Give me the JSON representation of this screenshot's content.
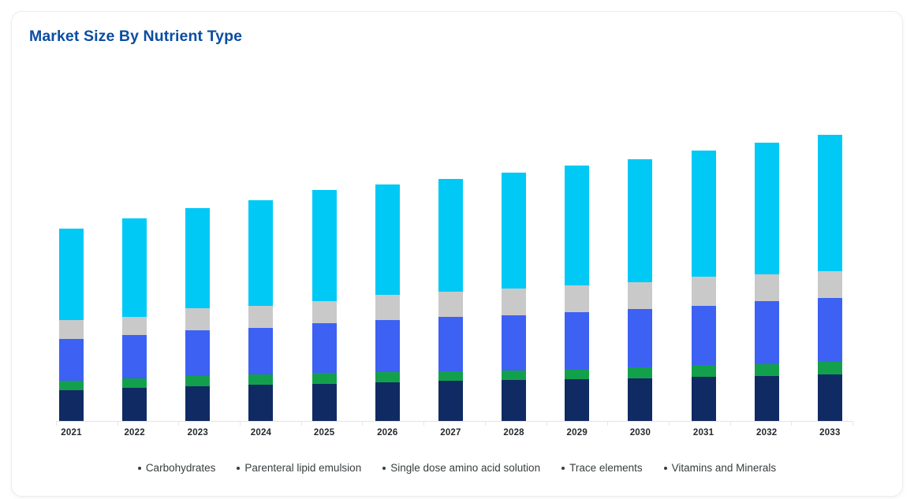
{
  "chart_data": {
    "type": "bar",
    "stacked": true,
    "title": "Market Size By Nutrient Type",
    "xlabel": "",
    "ylabel": "",
    "grid": false,
    "legend_position": "bottom",
    "ylim": [
      0,
      365
    ],
    "categories": [
      "2021",
      "2022",
      "2023",
      "2024",
      "2025",
      "2026",
      "2027",
      "2028",
      "2029",
      "2030",
      "2031",
      "2032",
      "2033"
    ],
    "series": [
      {
        "name": "Carbohydrates",
        "color": "#102a63",
        "values": [
          39,
          42,
          44,
          46,
          47,
          49,
          51,
          52,
          53,
          54,
          56,
          57,
          59
        ]
      },
      {
        "name": "Parenteral lipid emulsion",
        "color": "#13a04c",
        "values": [
          12,
          12,
          13,
          13,
          14,
          13,
          12,
          12,
          12,
          14,
          15,
          15,
          16
        ]
      },
      {
        "name": "Single dose amino acid solution",
        "color": "#3d61f2",
        "values": [
          53,
          55,
          58,
          59,
          63,
          66,
          69,
          70,
          73,
          74,
          75,
          80,
          81
        ]
      },
      {
        "name": "Trace elements",
        "color": "#c9c9c9",
        "values": [
          24,
          23,
          28,
          28,
          28,
          32,
          32,
          34,
          34,
          34,
          37,
          34,
          34
        ]
      },
      {
        "name": "Vitamins and Minerals",
        "color": "#00c9f5",
        "values": [
          116,
          125,
          127,
          134,
          141,
          140,
          143,
          147,
          152,
          156,
          160,
          167,
          173
        ]
      }
    ]
  },
  "colors": {
    "title_text": "#0b4da1",
    "axis_line": "#e3e3e3",
    "x_label_text": "#24292e",
    "legend_text": "#373d3f",
    "card_border": "#ececec"
  }
}
